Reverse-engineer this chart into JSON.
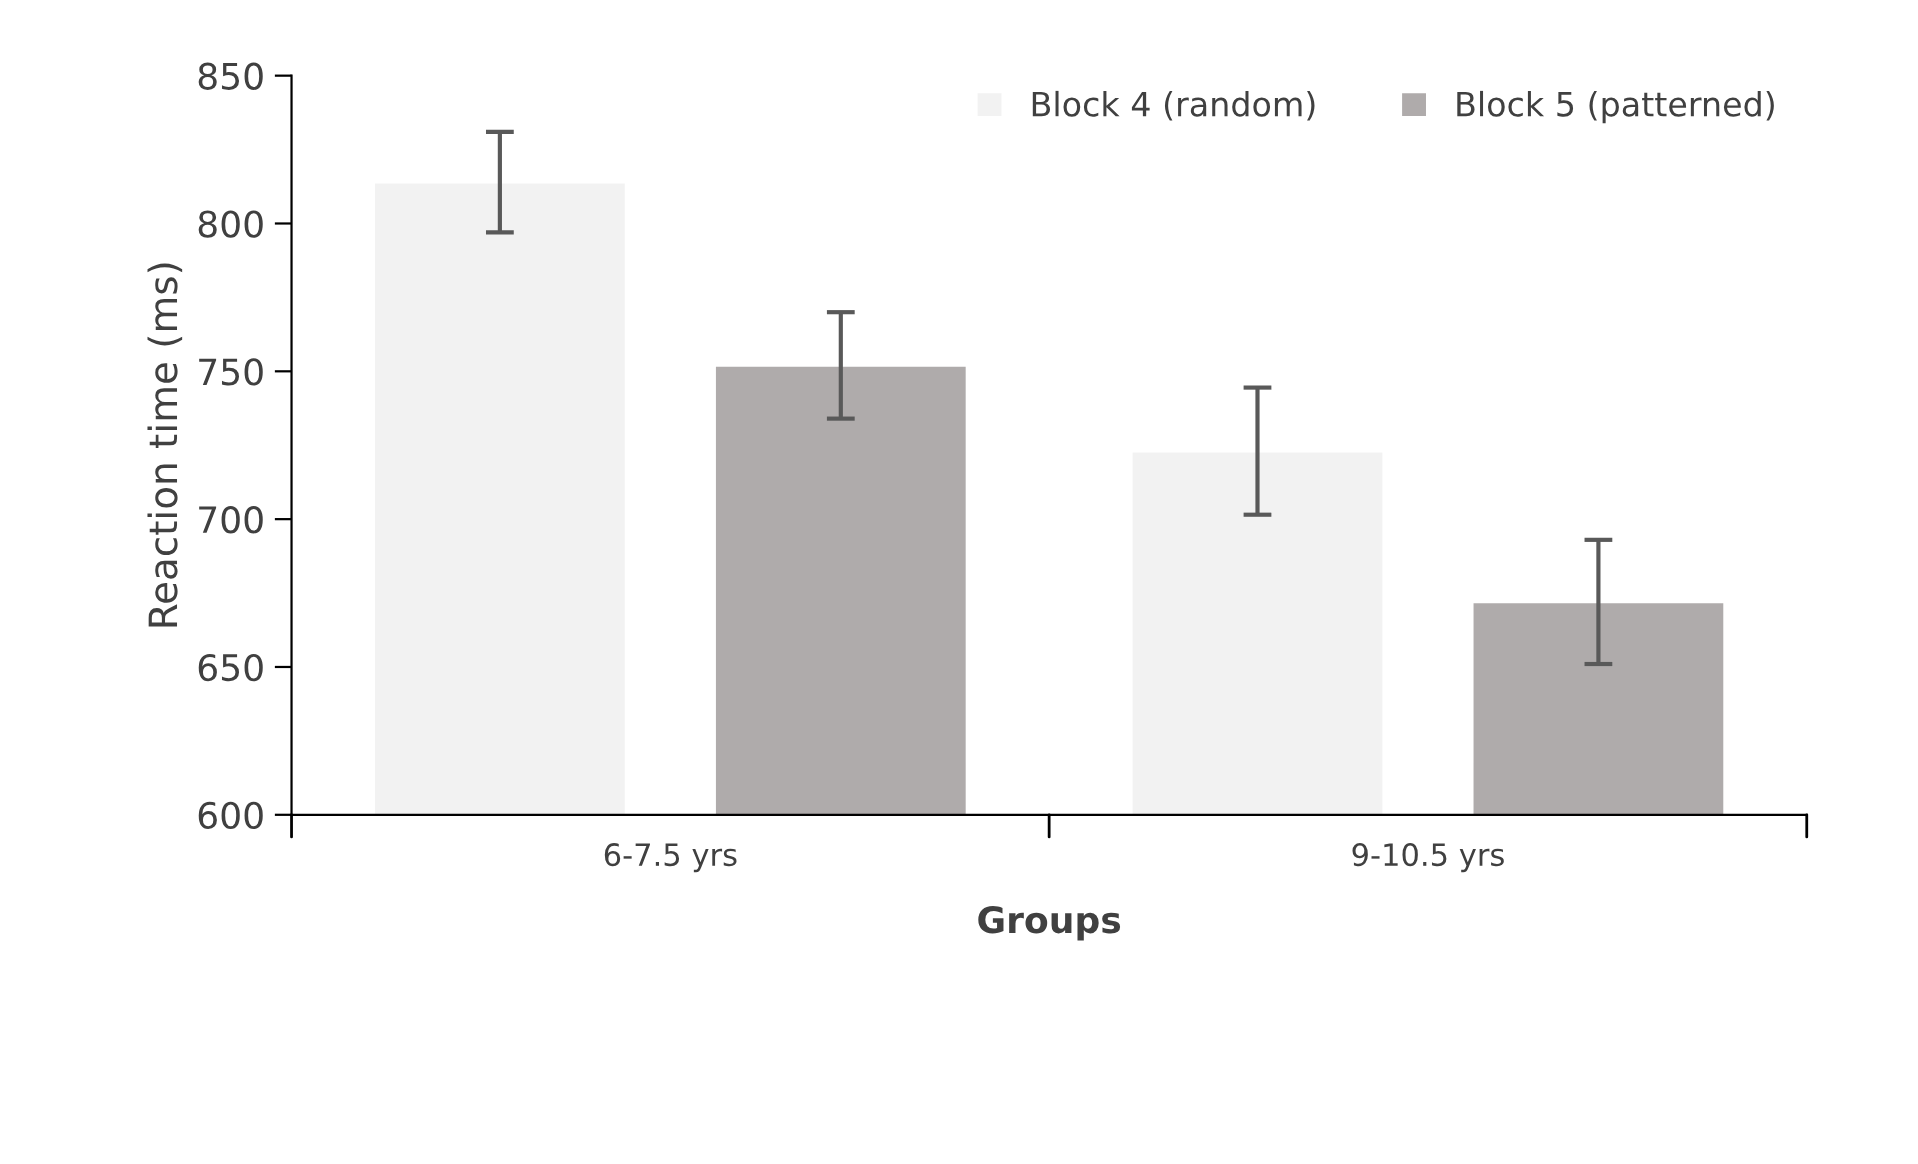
{
  "chart_data": {
    "type": "bar",
    "xlabel": "Groups",
    "ylabel": "Reaction time (ms)",
    "categories": [
      "6-7.5 yrs",
      "9-10.5 yrs"
    ],
    "series": [
      {
        "name": "Block 4 (random)",
        "color": "#f2f2f2",
        "values": [
          814,
          723
        ],
        "errors": [
          17,
          21.5
        ]
      },
      {
        "name": "Block 5 (patterned)",
        "color": "#afabab",
        "values": [
          752,
          672
        ],
        "errors": [
          18,
          21
        ]
      }
    ],
    "ylim": [
      600,
      850
    ],
    "yticks": [
      600,
      650,
      700,
      750,
      800,
      850
    ],
    "grid": false,
    "legend": "top right"
  }
}
